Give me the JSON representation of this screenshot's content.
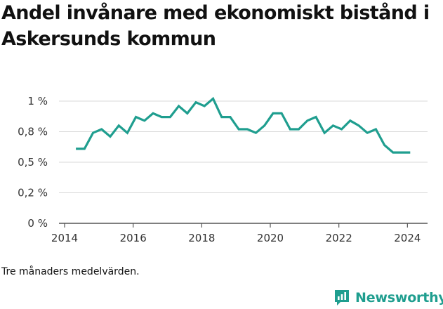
{
  "title": "Andel invånare med ekonomiskt bistånd i Askersunds kommun",
  "note": "Tre månaders medelvärden.",
  "brand": {
    "name": "Newsworthy",
    "logo_icon": "newsworthy-logo-icon",
    "color": "#1f9e8f"
  },
  "chart_data": {
    "type": "line",
    "title": "Andel invånare med ekonomiskt bistånd i Askersunds kommun",
    "xlabel": "",
    "ylabel": "",
    "x_ticks": [
      "2014",
      "2016",
      "2018",
      "2020",
      "2022",
      "2024"
    ],
    "y_ticks": [
      "0 %",
      "0,2 %",
      "0,5 %",
      "0,8 %",
      "1 %"
    ],
    "ylim": [
      0,
      1.0
    ],
    "grid": true,
    "line_color": "#1f9e8f",
    "series": [
      {
        "x": [
          2014.33,
          2014.58,
          2014.83,
          2015.08,
          2015.33,
          2015.58,
          2015.83,
          2016.08,
          2016.33,
          2016.58,
          2016.83,
          2017.08,
          2017.33,
          2017.58,
          2017.83,
          2018.08,
          2018.33,
          2018.58,
          2018.83,
          2019.08,
          2019.33,
          2019.58,
          2019.83,
          2020.08,
          2020.33,
          2020.58,
          2020.83,
          2021.08,
          2021.33,
          2021.58,
          2021.83,
          2022.08,
          2022.33,
          2022.58,
          2022.83,
          2023.08,
          2023.33,
          2023.58,
          2023.83,
          2024.08
        ],
        "y": [
          0.61,
          0.61,
          0.74,
          0.77,
          0.71,
          0.8,
          0.74,
          0.87,
          0.84,
          0.9,
          0.87,
          0.87,
          0.96,
          0.9,
          0.99,
          0.96,
          1.02,
          0.87,
          0.87,
          0.77,
          0.77,
          0.74,
          0.8,
          0.9,
          0.9,
          0.77,
          0.77,
          0.84,
          0.87,
          0.74,
          0.8,
          0.77,
          0.84,
          0.8,
          0.74,
          0.77,
          0.64,
          0.58,
          0.58,
          0.58
        ]
      }
    ]
  }
}
